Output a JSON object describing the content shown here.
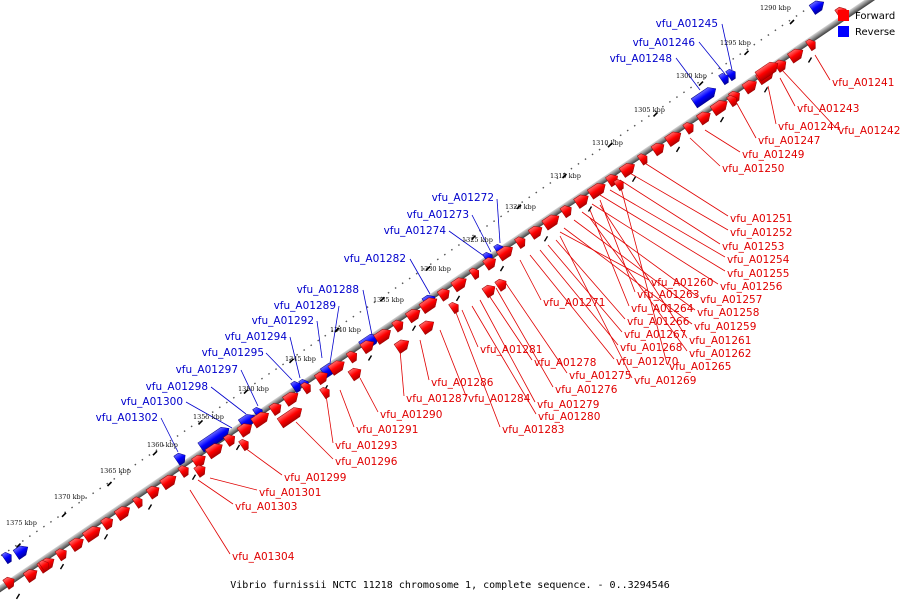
{
  "caption": "Vibrio furnissii NCTC 11218 chromosome 1, complete sequence. - 0..3294546",
  "legend": [
    {
      "label": "Forward",
      "color": "#ff0000"
    },
    {
      "label": "Reverse",
      "color": "#0000ff"
    }
  ],
  "colors": {
    "forward": "#ff0000",
    "reverse": "#0000ff",
    "forward_label": "#e00000",
    "reverse_label": "#0000cc"
  },
  "ticks": [
    "1290 kbp",
    "1295 kbp",
    "1300 kbp",
    "1305 kbp",
    "1310 kbp",
    "1315 kbp",
    "1320 kbp",
    "1325 kbp",
    "1330 kbp",
    "1335 kbp",
    "1340 kbp",
    "1345 kbp",
    "1350 kbp",
    "1355 kbp",
    "1360 kbp",
    "1365 kbp",
    "1370 kbp",
    "1375 kbp"
  ],
  "reverse_genes": [
    "vfu_A01245",
    "vfu_A01246",
    "vfu_A01248",
    "vfu_A01272",
    "vfu_A01273",
    "vfu_A01274",
    "vfu_A01282",
    "vfu_A01288",
    "vfu_A01289",
    "vfu_A01292",
    "vfu_A01294",
    "vfu_A01295",
    "vfu_A01297",
    "vfu_A01298",
    "vfu_A01300",
    "vfu_A01302"
  ],
  "forward_genes": [
    "vfu_A01241",
    "vfu_A01243",
    "vfu_A01244",
    "vfu_A01242",
    "vfu_A01247",
    "vfu_A01249",
    "vfu_A01250",
    "vfu_A01251",
    "vfu_A01252",
    "vfu_A01253",
    "vfu_A01254",
    "vfu_A01255",
    "vfu_A01256",
    "vfu_A01257",
    "vfu_A01258",
    "vfu_A01259",
    "vfu_A01260",
    "vfu_A01263",
    "vfu_A01264",
    "vfu_A01266",
    "vfu_A01267",
    "vfu_A01261",
    "vfu_A01262",
    "vfu_A01268",
    "vfu_A01270",
    "vfu_A01265",
    "vfu_A01269",
    "vfu_A01271",
    "vfu_A01275",
    "vfu_A01276",
    "vfu_A01278",
    "vfu_A01279",
    "vfu_A01280",
    "vfu_A01281",
    "vfu_A01283",
    "vfu_A01284",
    "vfu_A01286",
    "vfu_A01287",
    "vfu_A01290",
    "vfu_A01291",
    "vfu_A01293",
    "vfu_A01296",
    "vfu_A01299",
    "vfu_A01301",
    "vfu_A01303",
    "vfu_A01304"
  ]
}
